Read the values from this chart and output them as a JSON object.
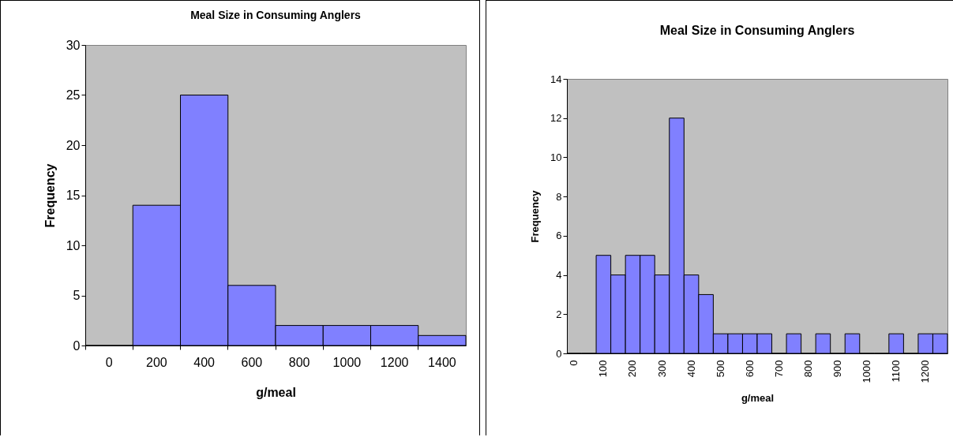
{
  "chart_data": [
    {
      "type": "bar",
      "title": "Meal Size in Consuming Anglers",
      "xlabel": "g/meal",
      "ylabel": "Frequency",
      "categories": [
        "0",
        "200",
        "400",
        "600",
        "800",
        "1000",
        "1200",
        "1400"
      ],
      "values": [
        0,
        14,
        25,
        6,
        2,
        2,
        2,
        1
      ],
      "color": "#8080ff",
      "ylim": [
        0,
        30
      ],
      "yticks": [
        0,
        5,
        10,
        15,
        20,
        25,
        30
      ],
      "grid": false
    },
    {
      "type": "bar",
      "title": "Meal Size in Consuming Anglers",
      "xlabel": "g/meal",
      "ylabel": "Frequency",
      "categories": [
        "0",
        null,
        "100",
        null,
        "200",
        null,
        "300",
        null,
        "400",
        null,
        "500",
        null,
        "600",
        null,
        "700",
        null,
        "800",
        null,
        "900",
        null,
        "1000",
        null,
        "1100",
        null,
        "1200",
        null
      ],
      "values": [
        0,
        0,
        5,
        4,
        5,
        5,
        4,
        12,
        4,
        3,
        1,
        1,
        1,
        1,
        0,
        1,
        0,
        1,
        0,
        1,
        0,
        0,
        1,
        0,
        1,
        1
      ],
      "color": "#8080ff",
      "ylim": [
        0,
        14
      ],
      "yticks": [
        0,
        2,
        4,
        6,
        8,
        10,
        12,
        14
      ],
      "grid": false
    }
  ]
}
